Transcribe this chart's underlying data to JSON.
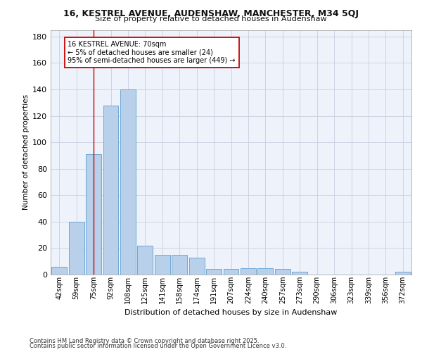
{
  "title_main": "16, KESTREL AVENUE, AUDENSHAW, MANCHESTER, M34 5QJ",
  "title_sub": "Size of property relative to detached houses in Audenshaw",
  "xlabel": "Distribution of detached houses by size in Audenshaw",
  "ylabel": "Number of detached properties",
  "categories": [
    "42sqm",
    "59sqm",
    "75sqm",
    "92sqm",
    "108sqm",
    "125sqm",
    "141sqm",
    "158sqm",
    "174sqm",
    "191sqm",
    "207sqm",
    "224sqm",
    "240sqm",
    "257sqm",
    "273sqm",
    "290sqm",
    "306sqm",
    "323sqm",
    "339sqm",
    "356sqm",
    "372sqm"
  ],
  "values": [
    6,
    40,
    91,
    128,
    140,
    22,
    15,
    15,
    13,
    4,
    4,
    5,
    5,
    4,
    2,
    0,
    0,
    0,
    0,
    0,
    2
  ],
  "bar_color": "#b8d0ea",
  "bar_edge_color": "#6fa8d6",
  "vline_x": 2,
  "vline_color": "#cc0000",
  "annotation_text": "16 KESTREL AVENUE: 70sqm\n← 5% of detached houses are smaller (24)\n95% of semi-detached houses are larger (449) →",
  "annotation_box_color": "#ffffff",
  "annotation_box_edge": "#cc0000",
  "ylim": [
    0,
    185
  ],
  "yticks": [
    0,
    20,
    40,
    60,
    80,
    100,
    120,
    140,
    160,
    180
  ],
  "background_color": "#eef2fb",
  "grid_color": "#c8cfe0",
  "footer_line1": "Contains HM Land Registry data © Crown copyright and database right 2025.",
  "footer_line2": "Contains public sector information licensed under the Open Government Licence v3.0."
}
